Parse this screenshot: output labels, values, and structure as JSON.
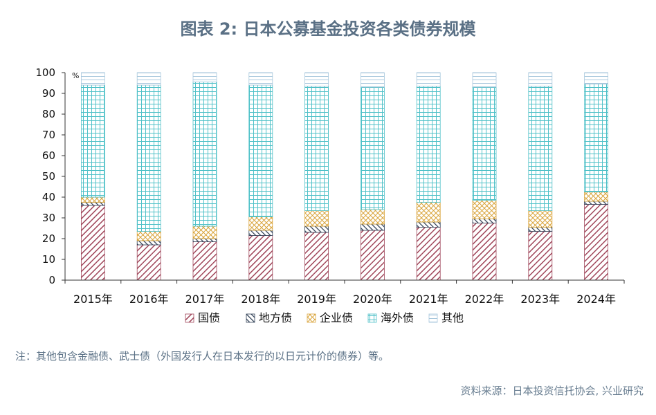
{
  "header": {
    "title": "图表 2:  日本公募基金投资各类债券规模"
  },
  "note": "注：其他包含金融债、武士债（外国发行人在日本发行的以日元计价的债券）等。",
  "source": "资料来源：日本投资信托协会, 兴业研究",
  "chart_data": {
    "type": "bar",
    "stacked": true,
    "title": "图表 2:  日本公募基金投资各类债券规模",
    "unit": "%",
    "ylim": [
      0,
      100
    ],
    "yticks": [
      0,
      10,
      20,
      30,
      40,
      50,
      60,
      70,
      80,
      90,
      100
    ],
    "legend_position": "bottom",
    "categories": [
      "2015年",
      "2016年",
      "2017年",
      "2018年",
      "2019年",
      "2020年",
      "2021年",
      "2022年",
      "2023年",
      "2024年"
    ],
    "series": [
      {
        "name": "国债",
        "pattern": "diag",
        "color": "#a0465a",
        "values": [
          36,
          17,
          18.5,
          21.5,
          23,
          24,
          25.5,
          27.5,
          23.5,
          36.5
        ]
      },
      {
        "name": "地方债",
        "pattern": "diag-dark",
        "color": "#2f3f55",
        "values": [
          1.5,
          2,
          1.5,
          2.5,
          3,
          3,
          2.5,
          2,
          2,
          1.5
        ]
      },
      {
        "name": "企业债",
        "pattern": "cross",
        "color": "#d9a43a",
        "values": [
          2.5,
          4.5,
          6,
          6.5,
          7.5,
          7,
          9.5,
          9,
          8,
          4.5
        ]
      },
      {
        "name": "海外债",
        "pattern": "grid",
        "color": "#4fc1c8",
        "values": [
          54,
          70.5,
          69.5,
          63.5,
          60,
          59,
          56,
          54.5,
          60,
          52
        ]
      },
      {
        "name": "其他",
        "pattern": "hlines",
        "color": "#a7c7dc",
        "values": [
          6,
          6,
          4.5,
          6,
          6.5,
          7,
          6.5,
          7,
          6.5,
          5.5
        ]
      }
    ]
  }
}
